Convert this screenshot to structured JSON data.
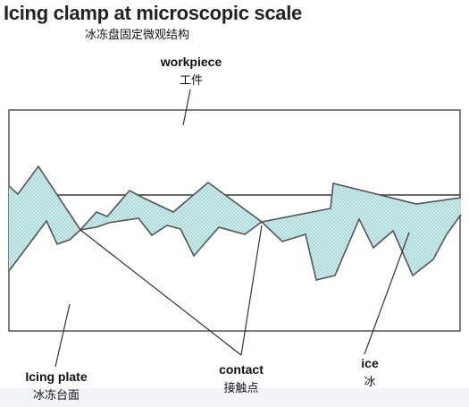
{
  "title": "Icing clamp at microscopic scale",
  "subtitle": "冰冻盘固定微观结构",
  "labels": {
    "workpiece": {
      "en": "workpiece",
      "cn": "工件"
    },
    "icing_plate": {
      "en": "Icing plate",
      "cn": "冰冻台面"
    },
    "contact": {
      "en": "contact",
      "cn": "接触点"
    },
    "ice": {
      "en": "ice",
      "cn": "冰"
    }
  },
  "colors": {
    "ice": "#9fd3d3",
    "outline": "#555555"
  }
}
